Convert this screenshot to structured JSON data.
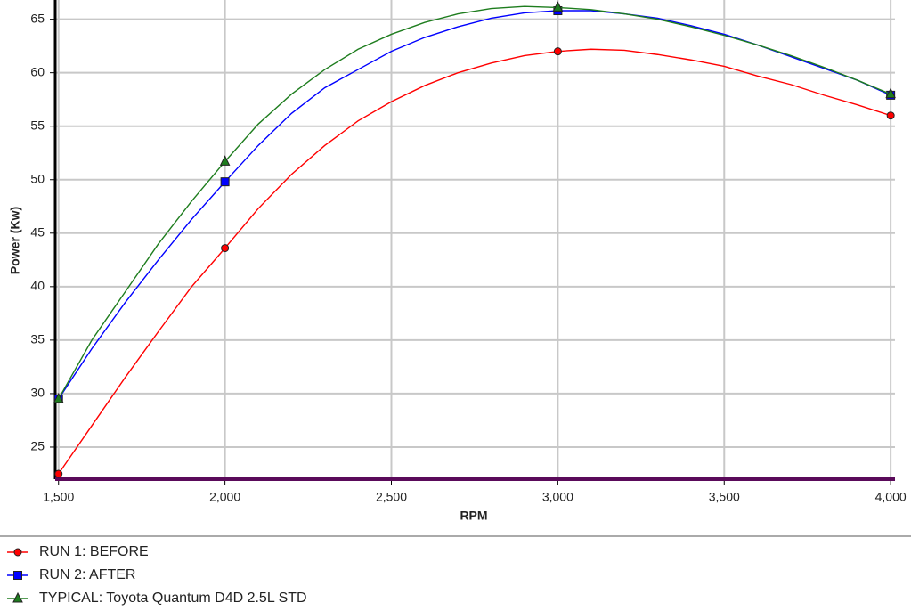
{
  "chart_data": {
    "type": "line",
    "x_label": "RPM",
    "y_label": "Power (Kw)",
    "x": [
      1500,
      1600,
      1700,
      1800,
      1900,
      2000,
      2100,
      2200,
      2300,
      2400,
      2500,
      2600,
      2700,
      2800,
      2900,
      3000,
      3100,
      3200,
      3300,
      3400,
      3500,
      3600,
      3700,
      3800,
      3900,
      4000
    ],
    "marker_x": [
      1500,
      2000,
      3000,
      4000
    ],
    "series": [
      {
        "name": "RUN 1: BEFORE",
        "color": "#ff0000",
        "marker": "circle",
        "values": [
          22.5,
          27,
          31.5,
          35.8,
          40,
          43.6,
          47.3,
          50.5,
          53.2,
          55.5,
          57.3,
          58.8,
          60,
          60.9,
          61.6,
          62,
          62.2,
          62.1,
          61.7,
          61.2,
          60.6,
          59.7,
          58.9,
          57.9,
          57,
          56
        ]
      },
      {
        "name": "RUN 2: AFTER",
        "color": "#0000ff",
        "marker": "square",
        "values": [
          29.5,
          34.2,
          38.5,
          42.5,
          46.3,
          49.8,
          53.2,
          56.2,
          58.6,
          60.3,
          62,
          63.3,
          64.3,
          65.1,
          65.6,
          65.8,
          65.8,
          65.5,
          65.1,
          64.4,
          63.6,
          62.6,
          61.5,
          60.4,
          59.3,
          57.9
        ]
      },
      {
        "name": "TYPICAL: Toyota Quantum D4D 2.5L STD",
        "color": "#1e7d1e",
        "marker": "triangle",
        "values": [
          29.5,
          35,
          39.5,
          44,
          48,
          51.7,
          55.2,
          58,
          60.3,
          62.2,
          63.6,
          64.7,
          65.5,
          66,
          66.2,
          66.1,
          65.9,
          65.5,
          65,
          64.3,
          63.5,
          62.6,
          61.6,
          60.5,
          59.3,
          58
        ]
      }
    ],
    "xlim": [
      1490,
      4013
    ],
    "xticks": [
      {
        "value": 1500,
        "label": "1,500"
      },
      {
        "value": 2000,
        "label": "2,000"
      },
      {
        "value": 2500,
        "label": "2,500"
      },
      {
        "value": 3000,
        "label": "3,000"
      },
      {
        "value": 3500,
        "label": "3,500"
      },
      {
        "value": 4000,
        "label": "4,000"
      }
    ],
    "ylim": [
      22,
      66.8
    ],
    "yticks": [
      25,
      30,
      35,
      40,
      45,
      50,
      55,
      60,
      65
    ],
    "grid": true
  }
}
